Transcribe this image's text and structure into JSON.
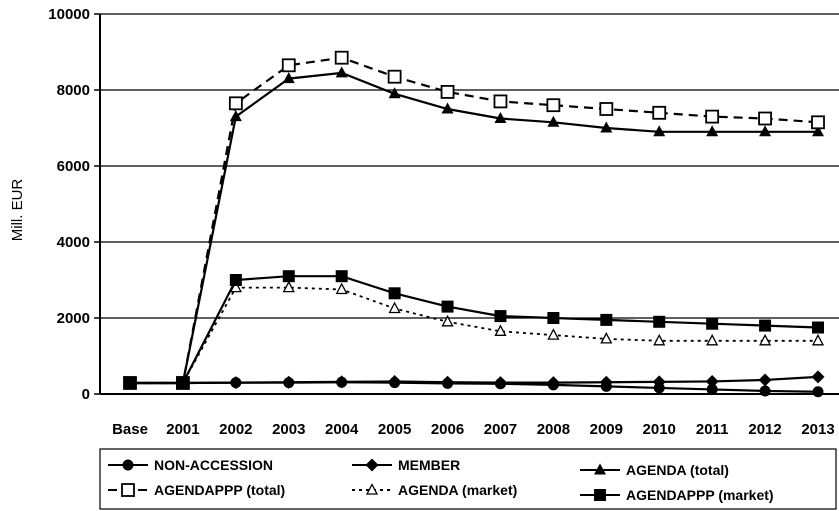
{
  "chart_data": {
    "type": "line",
    "xlabel": "",
    "ylabel": "Mill. EUR",
    "ylim": [
      0,
      10000
    ],
    "yticks": [
      "0",
      "2000",
      "4000",
      "6000",
      "8000",
      "10000"
    ],
    "grid": "horizontal",
    "legend_position": "bottom",
    "categories": [
      "Base",
      "2001",
      "2002",
      "2003",
      "2004",
      "2005",
      "2006",
      "2007",
      "2008",
      "2009",
      "2010",
      "2011",
      "2012",
      "2013"
    ],
    "series": [
      {
        "name": "NON-ACCESSION",
        "marker": "circle",
        "line": "solid",
        "values": [
          290,
          290,
          300,
          300,
          310,
          300,
          280,
          270,
          240,
          200,
          160,
          120,
          80,
          60
        ]
      },
      {
        "name": "MEMBER",
        "marker": "diamond",
        "line": "solid",
        "values": [
          290,
          290,
          300,
          310,
          320,
          330,
          310,
          300,
          300,
          310,
          320,
          330,
          370,
          450
        ]
      },
      {
        "name": "AGENDA (total)",
        "marker": "triangle-filled",
        "line": "solid",
        "values": [
          290,
          290,
          7300,
          8300,
          8450,
          7900,
          7500,
          7250,
          7150,
          7000,
          6900,
          6900,
          6900,
          6900
        ]
      },
      {
        "name": "AGENDAPPP (total)",
        "marker": "square-open",
        "line": "dashed",
        "values": [
          290,
          290,
          7650,
          8650,
          8850,
          8350,
          7950,
          7700,
          7600,
          7500,
          7400,
          7300,
          7250,
          7150
        ]
      },
      {
        "name": "AGENDA (market)",
        "marker": "triangle-open",
        "line": "dotted",
        "values": [
          290,
          290,
          2800,
          2800,
          2750,
          2250,
          1900,
          1650,
          1550,
          1450,
          1400,
          1400,
          1400,
          1400
        ]
      },
      {
        "name": "AGENDAPPP (market)",
        "marker": "square-filled",
        "line": "solid",
        "values": [
          290,
          290,
          3000,
          3100,
          3100,
          2650,
          2300,
          2050,
          2000,
          1950,
          1900,
          1850,
          1800,
          1750
        ]
      }
    ]
  }
}
